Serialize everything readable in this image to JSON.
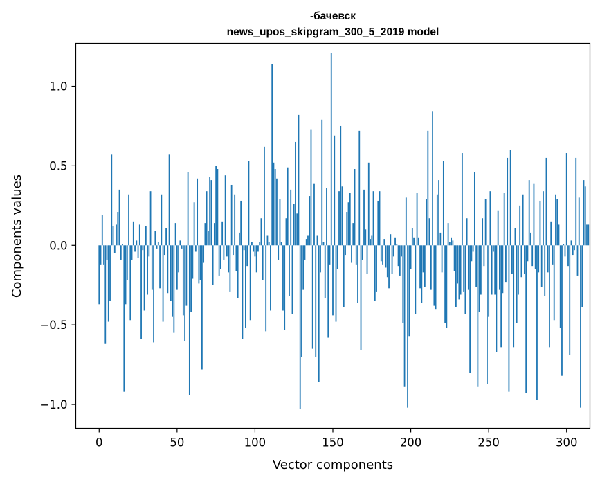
{
  "chart_data": {
    "type": "bar",
    "title_line1": "-бачевск",
    "title_line2": "news_upos_skipgram_300_5_2019 model",
    "xlabel": "Vector components",
    "ylabel": "Components values",
    "xlim": [
      -15,
      315
    ],
    "ylim": [
      -1.15,
      1.27
    ],
    "xticks": [
      0,
      50,
      100,
      150,
      200,
      250,
      300
    ],
    "xtick_labels": [
      "0",
      "50",
      "100",
      "150",
      "200",
      "250",
      "300"
    ],
    "yticks": [
      -1.0,
      -0.5,
      0.0,
      0.5,
      1.0
    ],
    "ytick_labels": [
      "−1.0",
      "−0.5",
      "0.0",
      "0.5",
      "1.0"
    ],
    "color": "#1f77b4",
    "values": [
      -0.37,
      -0.12,
      0.19,
      -0.12,
      -0.62,
      -0.09,
      -0.48,
      -0.35,
      0.57,
      0.12,
      -0.05,
      0.13,
      0.21,
      0.35,
      -0.09,
      0.01,
      -0.92,
      -0.37,
      -0.22,
      0.32,
      -0.47,
      -0.09,
      0.15,
      -0.04,
      0.03,
      -0.08,
      0.13,
      -0.59,
      -0.03,
      -0.41,
      0.12,
      -0.31,
      -0.07,
      0.34,
      -0.28,
      -0.61,
      0.09,
      -0.02,
      0.02,
      -0.27,
      0.32,
      -0.48,
      -0.06,
      0.11,
      -0.3,
      0.57,
      -0.35,
      -0.45,
      -0.55,
      0.14,
      -0.28,
      -0.17,
      0.03,
      -0.02,
      -0.44,
      -0.6,
      -0.38,
      0.46,
      -0.94,
      -0.42,
      -0.21,
      0.27,
      -0.04,
      0.42,
      -0.24,
      -0.22,
      -0.78,
      -0.11,
      0.14,
      0.34,
      0.09,
      0.43,
      0.41,
      -0.25,
      0.14,
      0.5,
      0.48,
      -0.19,
      -0.15,
      0.15,
      -0.09,
      0.44,
      -0.07,
      -0.17,
      -0.29,
      0.38,
      -0.06,
      0.32,
      -0.16,
      -0.33,
      0.08,
      0.28,
      -0.59,
      -0.03,
      -0.52,
      -0.13,
      0.53,
      -0.47,
      0.02,
      -0.04,
      -0.07,
      -0.17,
      -0.04,
      0.02,
      0.17,
      -0.22,
      0.62,
      -0.54,
      0.06,
      0.02,
      -0.41,
      1.14,
      0.52,
      0.48,
      0.42,
      -0.09,
      0.29,
      0.02,
      -0.41,
      -0.53,
      0.17,
      0.49,
      -0.32,
      0.35,
      -0.43,
      0.26,
      0.65,
      0.2,
      0.82,
      -1.03,
      -0.7,
      -0.28,
      -0.09,
      0.04,
      0.06,
      0.31,
      0.73,
      -0.65,
      0.39,
      -0.7,
      0.06,
      -0.86,
      -0.17,
      0.79,
      0.02,
      -0.33,
      0.36,
      -0.58,
      -0.12,
      1.21,
      -0.44,
      0.69,
      -0.48,
      -0.15,
      0.34,
      0.75,
      0.37,
      -0.39,
      -0.06,
      0.21,
      0.27,
      0.33,
      -0.11,
      0.14,
      0.48,
      -0.12,
      -0.36,
      0.72,
      -0.66,
      -0.09,
      0.35,
      0.1,
      -0.18,
      0.52,
      0.04,
      0.06,
      0.34,
      -0.35,
      -0.29,
      0.28,
      0.34,
      -0.1,
      -0.12,
      0.04,
      -0.14,
      -0.2,
      -0.27,
      0.07,
      -0.18,
      -0.07,
      0.05,
      0.01,
      -0.13,
      -0.19,
      -0.07,
      -0.49,
      -0.89,
      0.3,
      -1.02,
      -0.57,
      -0.15,
      0.11,
      0.05,
      -0.43,
      0.33,
      0.05,
      -0.27,
      -0.36,
      -0.17,
      -0.26,
      0.29,
      0.72,
      0.17,
      -0.28,
      0.84,
      -0.38,
      -0.4,
      0.32,
      0.41,
      0.08,
      -0.17,
      0.53,
      -0.49,
      -0.52,
      0.14,
      0.02,
      0.05,
      0.03,
      -0.16,
      -0.39,
      -0.24,
      -0.34,
      -0.31,
      0.58,
      -0.29,
      -0.43,
      0.17,
      -0.28,
      -0.8,
      -0.1,
      -0.04,
      0.46,
      -0.26,
      -0.89,
      -0.42,
      -0.31,
      0.17,
      -0.13,
      0.29,
      -0.87,
      -0.45,
      0.34,
      -0.31,
      -0.04,
      -0.31,
      -0.67,
      0.22,
      -0.28,
      -0.64,
      -0.3,
      0.33,
      -0.23,
      0.55,
      -0.92,
      0.6,
      -0.18,
      -0.64,
      0.11,
      -0.49,
      -0.31,
      0.25,
      -0.2,
      0.32,
      -0.18,
      -0.93,
      -0.1,
      0.41,
      0.08,
      -0.13,
      0.39,
      -0.15,
      -0.97,
      -0.17,
      0.28,
      -0.26,
      0.34,
      -0.32,
      0.55,
      -0.17,
      -0.64,
      0.15,
      -0.12,
      -0.47,
      0.32,
      0.29,
      0.13,
      -0.52,
      -0.82,
      0.01,
      -0.07,
      0.58,
      -0.13,
      -0.69,
      0.03,
      -0.06,
      -0.03,
      0.55,
      -0.19,
      0.3,
      -1.02,
      -0.39,
      0.41,
      0.37,
      0.13,
      0.13
    ]
  }
}
